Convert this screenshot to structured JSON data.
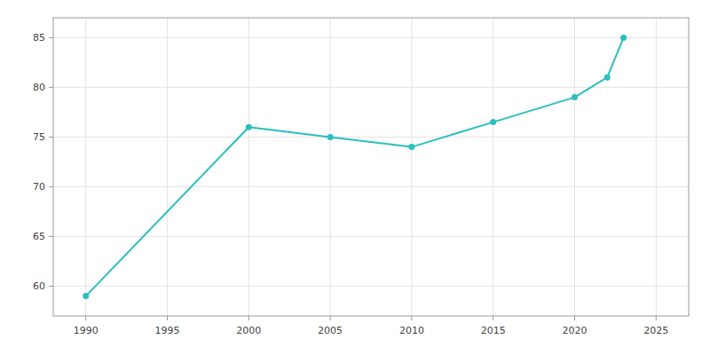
{
  "chart_data": {
    "type": "line",
    "x": [
      1990,
      2000,
      2005,
      2010,
      2015,
      2020,
      2022,
      2023
    ],
    "values": [
      59,
      76,
      75,
      74,
      76.5,
      79,
      81,
      85
    ],
    "color": "#2abfbf",
    "marker": "circle",
    "xlim": [
      1988,
      2027
    ],
    "ylim": [
      57,
      87
    ],
    "xticks": [
      1990,
      1995,
      2000,
      2005,
      2010,
      2015,
      2020,
      2025
    ],
    "yticks": [
      60,
      65,
      70,
      75,
      80,
      85
    ],
    "grid": true
  }
}
